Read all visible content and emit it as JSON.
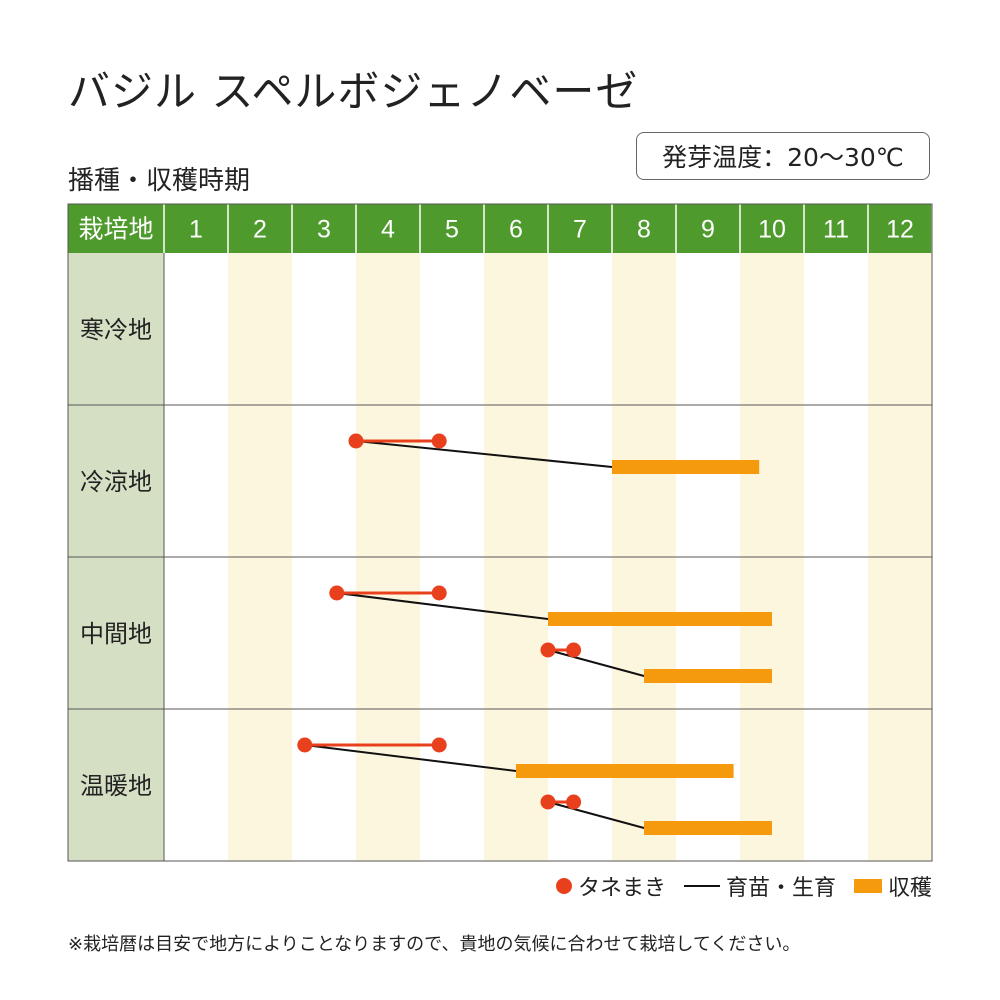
{
  "header": {
    "title": "バジル スペルボジェノベーゼ",
    "subtitle": "播種・収穫時期",
    "temperature": "発芽温度：20〜30℃"
  },
  "chart_data": {
    "type": "table",
    "corner_label": "栽培地",
    "months": [
      "1",
      "2",
      "3",
      "4",
      "5",
      "6",
      "7",
      "8",
      "9",
      "10",
      "11",
      "12"
    ],
    "regions": [
      {
        "label": "寒冷地",
        "items": []
      },
      {
        "label": "冷涼地",
        "items": [
          {
            "sow": [
              4.0,
              5.3
            ],
            "harvest": [
              8.0,
              10.3
            ]
          }
        ]
      },
      {
        "label": "中間地",
        "items": [
          {
            "sow": [
              3.7,
              5.3
            ],
            "harvest": [
              7.0,
              10.5
            ]
          },
          {
            "sow": [
              7.0,
              7.4
            ],
            "harvest": [
              8.5,
              10.5
            ]
          }
        ]
      },
      {
        "label": "温暖地",
        "items": [
          {
            "sow": [
              3.2,
              5.3
            ],
            "harvest": [
              6.5,
              9.9
            ]
          },
          {
            "sow": [
              7.0,
              7.4
            ],
            "harvest": [
              8.5,
              10.5
            ]
          }
        ]
      }
    ],
    "colors": {
      "header_bg": "#4e9a2d",
      "label_bg": "#d5dfc4",
      "stripe": "#fdf6de",
      "sow": "#e8401c",
      "harvest": "#f5990d",
      "growing": "#111111"
    }
  },
  "legend": {
    "sow": "タネまき",
    "growing": "育苗・生育",
    "harvest": "収穫"
  },
  "footnote": "※栽培暦は目安で地方によりことなりますので、貴地の気候に合わせて栽培してください。"
}
